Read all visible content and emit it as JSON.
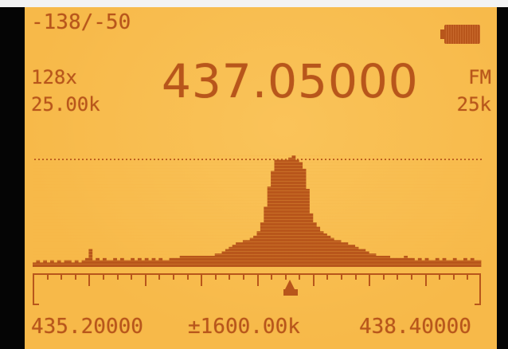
{
  "display": {
    "squelch": "-138/-50",
    "step_count": "128x",
    "step_size": "25.00k",
    "frequency": "437.05000",
    "modulation": "FM",
    "bandwidth": "25k",
    "start_frequency": "435.20000",
    "span": "±1600.00k",
    "end_frequency": "438.40000"
  },
  "icons": {
    "battery": "battery-full-icon",
    "marker": "center-marker-icon"
  },
  "colors": {
    "lcd_background": "#f7b949",
    "lcd_foreground": "#b8561b",
    "bezel": "#050505"
  },
  "spectrum": {
    "channels": 128,
    "levels": [
      2,
      3,
      2,
      3,
      2,
      3,
      2,
      3,
      2,
      3,
      3,
      2,
      3,
      2,
      3,
      4,
      8,
      3,
      4,
      3,
      4,
      3,
      3,
      4,
      3,
      4,
      3,
      3,
      4,
      3,
      4,
      3,
      4,
      3,
      4,
      3,
      4,
      3,
      3,
      4,
      4,
      4,
      5,
      5,
      5,
      5,
      5,
      5,
      5,
      5,
      5,
      5,
      6,
      6,
      7,
      8,
      9,
      10,
      11,
      11,
      12,
      12,
      13,
      14,
      16,
      20,
      27,
      36,
      43,
      48,
      48,
      48,
      48,
      49,
      50,
      48,
      47,
      44,
      35,
      24,
      20,
      18,
      16,
      15,
      14,
      13,
      12,
      12,
      11,
      11,
      10,
      10,
      9,
      8,
      8,
      7,
      6,
      6,
      5,
      5,
      5,
      5,
      4,
      4,
      4,
      4,
      5,
      4,
      4,
      3,
      4,
      3,
      4,
      3,
      3,
      4,
      3,
      4,
      3,
      3,
      4,
      3,
      3,
      4,
      3,
      4,
      3,
      3
    ],
    "max_level": 50
  }
}
